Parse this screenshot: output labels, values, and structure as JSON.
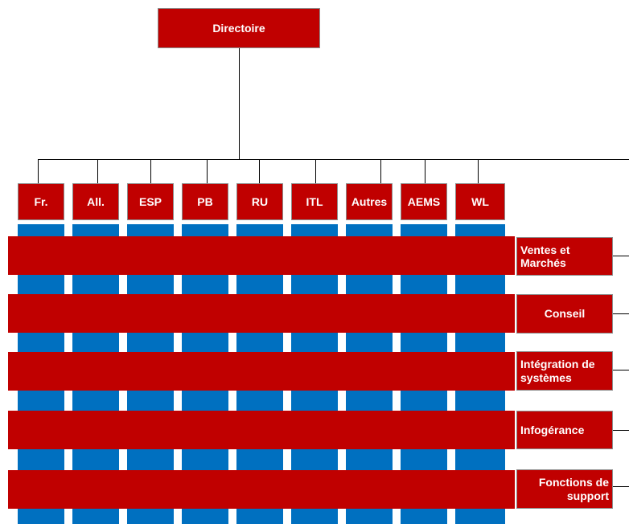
{
  "root": {
    "label": "Directoire"
  },
  "countries": [
    "Fr.",
    "All.",
    "ESP",
    "PB",
    "RU",
    "ITL",
    "Autres",
    "AEMS",
    "WL"
  ],
  "business_lines": [
    "Ventes et Marchés",
    "Conseil",
    "Intégration de systèmes",
    "Infogérance",
    "Fonctions de support"
  ],
  "colors": {
    "red": "#c00000",
    "blue": "#0070c0",
    "line": "#000000",
    "border": "#8c8c8c"
  }
}
